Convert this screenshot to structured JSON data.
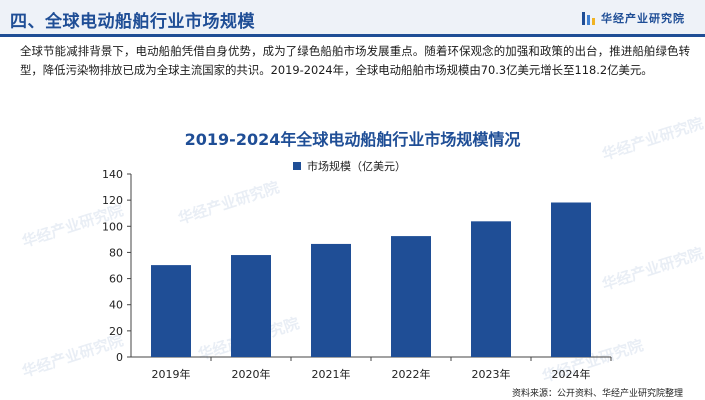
{
  "header": {
    "section_title": "四、全球电动船舶行业市场规模",
    "brand": "华经产业研究院"
  },
  "intro_text": "全球节能减排背景下，电动船舶凭借自身优势，成为了绿色船舶市场发展重点。随着环保观念的加强和政策的出台，推进船舶绿色转型，降低污染物排放已成为全球主流国家的共识。2019-2024年，全球电动船舶市场规模由70.3亿美元增长至118.2亿美元。",
  "chart_data": {
    "type": "bar",
    "title": "2019-2024年全球电动船舶行业市场规模情况",
    "categories": [
      "2019年",
      "2020年",
      "2021年",
      "2022年",
      "2023年",
      "2024年"
    ],
    "series": [
      {
        "name": "市场规模（亿美元）",
        "values": [
          70.3,
          78.0,
          86.5,
          92.5,
          103.8,
          118.2
        ],
        "color": "#1f4e96"
      }
    ],
    "ylim": [
      0,
      140
    ],
    "yticks": [
      0,
      20,
      40,
      60,
      80,
      100,
      120,
      140
    ],
    "grid": false,
    "legend_position": "top"
  },
  "watermark": "华经产业研究院",
  "source": "资料来源：公开资料、华经产业研究院整理",
  "colors": {
    "accent": "#1f4e96",
    "header_bg": "#eef2f8"
  }
}
